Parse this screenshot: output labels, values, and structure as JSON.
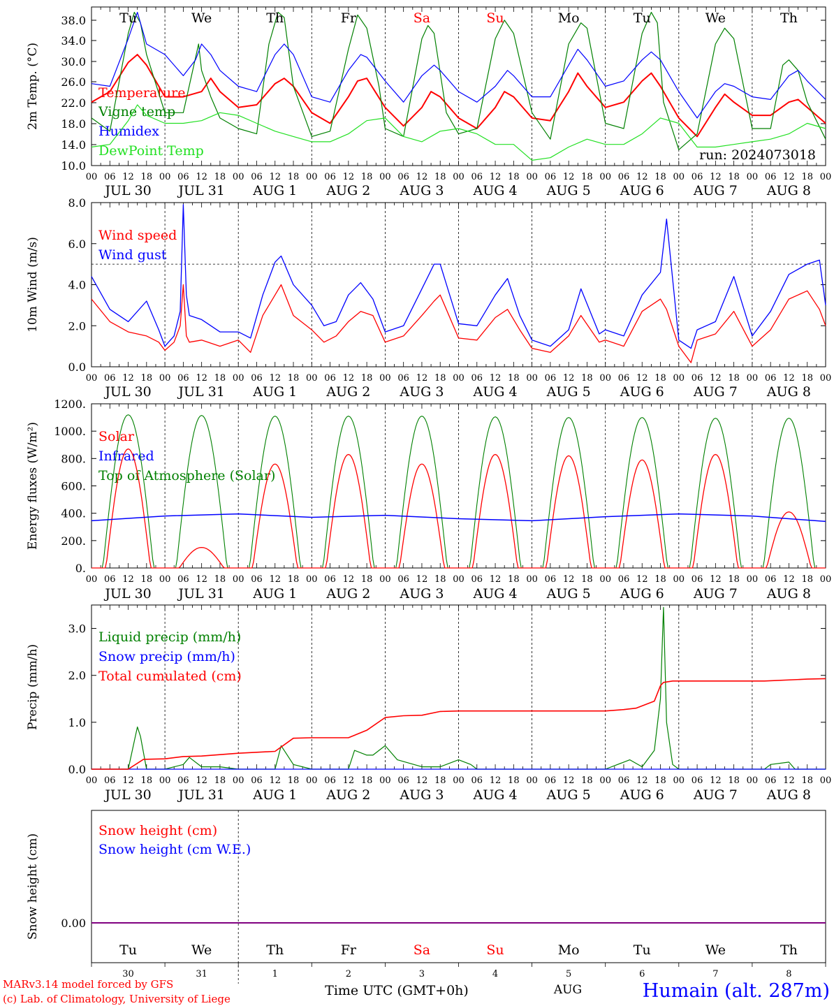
{
  "meta": {
    "run": "run: 2024073018",
    "model_credit": "MARv3.14 model forced by GFS",
    "lab_credit": "(c) Lab. of Climatology, University of Liege",
    "time_axis_title": "Time UTC (GMT+0h)",
    "month": "AUG",
    "station": "Humain (alt. 287m)"
  },
  "colors": {
    "red": "#ff0000",
    "green": "#008000",
    "blue": "#0000ff",
    "lightgreen": "#22e022",
    "purple": "#800080",
    "ink": "#000000"
  },
  "days": {
    "weekday": [
      "Tu",
      "We",
      "Th",
      "Fr",
      "Sa",
      "Su",
      "Mo",
      "Tu",
      "We",
      "Th"
    ],
    "weekend": [
      false,
      false,
      false,
      false,
      true,
      true,
      false,
      false,
      false,
      false
    ],
    "date": [
      "JUL 30",
      "JUL 31",
      "AUG  1",
      "AUG  2",
      "AUG  3",
      "AUG  4",
      "AUG  5",
      "AUG  6",
      "AUG  7",
      "AUG  8"
    ],
    "daynum": [
      "30",
      "31",
      "1",
      "2",
      "3",
      "4",
      "5",
      "6",
      "7",
      "8"
    ]
  },
  "hour_labels": [
    "00",
    "06",
    "12",
    "18"
  ],
  "hour_end_label": "00",
  "chart_data": [
    {
      "type": "line",
      "ylabel": "2m Temp. (°C)",
      "ylim": [
        10,
        40
      ],
      "yticks": [
        "10.0",
        "14.0",
        "18.0",
        "22.0",
        "26.0",
        "30.0",
        "34.0",
        "38.0"
      ],
      "x_unit": "hours from JUL 30 00 UTC",
      "series": [
        {
          "name": "Temperature",
          "color": "red",
          "x": [
            0,
            6,
            12,
            15,
            18,
            24,
            30,
            36,
            39,
            42,
            48,
            54,
            60,
            63,
            66,
            72,
            78,
            84,
            87,
            90,
            96,
            102,
            108,
            111,
            114,
            120,
            126,
            132,
            135,
            138,
            144,
            150,
            156,
            159,
            162,
            168,
            174,
            180,
            183,
            186,
            192,
            198,
            204,
            207,
            210,
            216,
            222,
            228,
            231,
            234,
            240
          ],
          "values": [
            22,
            24,
            29.5,
            31,
            29,
            23,
            23,
            24,
            26.5,
            24,
            21,
            21.5,
            25.5,
            26.5,
            25,
            20,
            18,
            23,
            26,
            26.5,
            21,
            17.5,
            21,
            24,
            23,
            19,
            17,
            21,
            24,
            23,
            19,
            18.5,
            24,
            27.5,
            25,
            21,
            22,
            26,
            27.5,
            25,
            19,
            15.5,
            21,
            23.5,
            22,
            19.5,
            19.5,
            22,
            22.5,
            21,
            18
          ]
        },
        {
          "name": "Vigne temp",
          "color": "green",
          "x": [
            0,
            6,
            12,
            14,
            16,
            18,
            24,
            30,
            35,
            36,
            39,
            42,
            48,
            54,
            58,
            61,
            63,
            66,
            72,
            78,
            84,
            87,
            90,
            94,
            96,
            102,
            108,
            110,
            112,
            116,
            120,
            126,
            132,
            135,
            138,
            144,
            150,
            156,
            160,
            162,
            168,
            174,
            180,
            183,
            185,
            187,
            192,
            198,
            204,
            207,
            210,
            216,
            222,
            226,
            228,
            231,
            234,
            240
          ],
          "values": [
            19,
            16.5,
            35,
            39,
            37,
            31,
            20,
            20,
            33,
            28,
            23,
            19,
            17,
            16,
            33,
            39,
            38,
            25,
            15.5,
            16.5,
            32,
            38.5,
            36,
            25,
            17,
            15.5,
            34,
            36.5,
            35,
            20,
            16,
            17,
            34,
            37.5,
            35,
            20,
            15,
            33,
            37,
            36,
            18,
            17,
            35,
            39,
            37,
            22,
            13,
            16,
            33,
            36,
            34,
            17,
            17,
            29,
            30,
            28,
            22,
            15
          ]
        },
        {
          "name": "Humidex",
          "color": "blue",
          "x": [
            0,
            6,
            12,
            15,
            18,
            24,
            30,
            34,
            36,
            39,
            42,
            48,
            54,
            60,
            63,
            66,
            72,
            78,
            84,
            88,
            90,
            96,
            102,
            108,
            112,
            114,
            120,
            126,
            132,
            136,
            138,
            144,
            150,
            156,
            159,
            162,
            168,
            174,
            180,
            183,
            186,
            192,
            198,
            204,
            207,
            210,
            216,
            222,
            228,
            231,
            234,
            240
          ],
          "values": [
            25.5,
            25,
            34,
            39,
            33,
            31,
            27,
            30,
            33,
            31,
            28,
            25,
            24,
            31,
            33,
            31,
            23,
            22,
            28,
            31,
            30.5,
            26,
            22,
            27,
            29,
            28,
            24,
            22,
            25,
            28,
            27,
            23,
            23,
            29,
            32,
            30,
            25,
            26,
            30,
            31.5,
            30,
            24,
            19,
            24,
            25.5,
            25,
            23,
            22.5,
            27,
            28,
            26,
            22.5
          ]
        },
        {
          "name": "DewPoint Temp",
          "color": "lightgreen",
          "x": [
            0,
            6,
            12,
            15,
            18,
            24,
            30,
            36,
            42,
            48,
            54,
            60,
            66,
            72,
            78,
            84,
            90,
            96,
            102,
            108,
            114,
            120,
            126,
            132,
            138,
            144,
            150,
            156,
            162,
            168,
            174,
            180,
            186,
            192,
            198,
            204,
            210,
            216,
            222,
            228,
            234,
            240
          ],
          "values": [
            13.5,
            14,
            18.5,
            21.5,
            19.5,
            18,
            18,
            18.5,
            20,
            19.5,
            18,
            16.5,
            15.5,
            14.5,
            14.5,
            16,
            18.5,
            19,
            15.5,
            14.5,
            16.5,
            17,
            16,
            14,
            14,
            11,
            11.5,
            13.5,
            15,
            14,
            14,
            16,
            19,
            18,
            13.5,
            13.5,
            14,
            14.5,
            15,
            16,
            18,
            17
          ]
        }
      ]
    },
    {
      "type": "line",
      "ylabel": "10m Wind (m/s)",
      "ylim": [
        0,
        8
      ],
      "yticks": [
        "0.0",
        "2.0",
        "4.0",
        "6.0",
        "8.0"
      ],
      "reference_line": 5,
      "x_unit": "hours from JUL 30 00 UTC",
      "series": [
        {
          "name": "Wind speed",
          "color": "red",
          "x": [
            0,
            6,
            12,
            18,
            22,
            24,
            27,
            29,
            30,
            31,
            32,
            36,
            42,
            48,
            52,
            56,
            60,
            62,
            66,
            72,
            76,
            80,
            84,
            88,
            92,
            96,
            102,
            108,
            112,
            114,
            120,
            126,
            132,
            136,
            140,
            144,
            150,
            156,
            160,
            166,
            168,
            174,
            180,
            186,
            188,
            192,
            196,
            198,
            204,
            210,
            216,
            222,
            228,
            234,
            238,
            240
          ],
          "values": [
            3.3,
            2.2,
            1.7,
            1.5,
            1.2,
            0.8,
            1.2,
            2,
            4,
            1.5,
            1.2,
            1.3,
            1,
            1.3,
            0.7,
            2.5,
            3.5,
            4,
            2.5,
            1.8,
            1.2,
            1.5,
            2.2,
            2.7,
            2.5,
            1.2,
            1.5,
            2.5,
            3.2,
            3.5,
            1.4,
            1.3,
            2.4,
            2.8,
            1.8,
            0.9,
            0.7,
            1.5,
            2.5,
            1.2,
            1.3,
            1,
            2.7,
            3.3,
            2.8,
            1,
            0.2,
            1.3,
            1.6,
            2.7,
            1,
            1.8,
            3.3,
            3.7,
            2.8,
            2
          ]
        },
        {
          "name": "Wind gust",
          "color": "blue",
          "x": [
            0,
            6,
            12,
            18,
            22,
            24,
            27,
            29,
            30,
            31,
            32,
            36,
            42,
            48,
            52,
            56,
            60,
            62,
            66,
            72,
            76,
            80,
            84,
            88,
            92,
            96,
            102,
            108,
            112,
            114,
            120,
            126,
            132,
            136,
            140,
            144,
            150,
            156,
            160,
            166,
            168,
            174,
            180,
            186,
            188,
            192,
            196,
            198,
            204,
            210,
            216,
            222,
            228,
            234,
            238,
            240
          ],
          "values": [
            4.4,
            2.8,
            2.2,
            3.2,
            1.8,
            1,
            1.5,
            2.7,
            7.9,
            3.5,
            2.5,
            2.3,
            1.7,
            1.7,
            1.4,
            3.5,
            5.1,
            5.4,
            4,
            3,
            2,
            2.2,
            3.5,
            4.1,
            3.3,
            1.7,
            2,
            3.8,
            5,
            5,
            2.1,
            2,
            3.5,
            4.3,
            2.5,
            1.3,
            1,
            1.8,
            3.8,
            1.6,
            1.8,
            1.5,
            3.5,
            4.6,
            7.2,
            1.3,
            0.9,
            1.8,
            2.2,
            4.4,
            1.5,
            2.7,
            4.5,
            5,
            5.2,
            3
          ]
        }
      ]
    },
    {
      "type": "line",
      "ylabel": "Energy fluxes (W/m²)",
      "ylim": [
        0,
        1200
      ],
      "yticks": [
        "0.",
        "200.",
        "400.",
        "600.",
        "800.",
        "1000.",
        "1200."
      ],
      "x_unit": "hours from JUL 30 00 UTC",
      "series": [
        {
          "name": "Solar",
          "color": "red",
          "peaks_at_12h": [
            870,
            150,
            760,
            830,
            760,
            830,
            820,
            790,
            830,
            410
          ]
        },
        {
          "name": "Infrared",
          "color": "blue",
          "x": [
            0,
            24,
            48,
            72,
            96,
            120,
            144,
            168,
            192,
            216,
            240
          ],
          "values": [
            345,
            380,
            395,
            370,
            385,
            360,
            345,
            375,
            395,
            380,
            340
          ]
        },
        {
          "name": "Top of Atmosphere (Solar)",
          "color": "green",
          "peaks_at_12h": [
            1120,
            1115,
            1110,
            1110,
            1110,
            1105,
            1100,
            1100,
            1095,
            1095
          ]
        }
      ]
    },
    {
      "type": "line",
      "ylabel": "Precip (mm/h)",
      "ylim": [
        0,
        3.5
      ],
      "yticks": [
        "0.0",
        "1.0",
        "2.0",
        "3.0"
      ],
      "x_unit": "hours from JUL 30 00 UTC",
      "series": [
        {
          "name": "Liquid precip (mm/h)",
          "color": "green",
          "x": [
            0,
            12,
            14,
            15,
            16,
            18,
            24,
            30,
            32,
            36,
            42,
            48,
            60,
            62,
            66,
            72,
            84,
            86,
            90,
            92,
            96,
            100,
            108,
            114,
            120,
            124,
            126,
            168,
            176,
            180,
            184,
            186,
            187,
            188,
            190,
            192,
            220,
            222,
            228,
            230,
            240
          ],
          "values": [
            0,
            0,
            0.6,
            0.9,
            0.7,
            0,
            0,
            0.1,
            0.25,
            0.05,
            0.05,
            0,
            0,
            0.5,
            0.1,
            0,
            0,
            0.4,
            0.3,
            0.3,
            0.5,
            0.2,
            0.05,
            0.05,
            0.2,
            0.1,
            0,
            0,
            0.2,
            0.05,
            0.4,
            1.5,
            3.45,
            1,
            0.1,
            0,
            0,
            0.1,
            0.15,
            0,
            0
          ]
        },
        {
          "name": "Snow precip (mm/h)",
          "color": "blue",
          "x": [
            0,
            240
          ],
          "values": [
            0,
            0
          ]
        },
        {
          "name": "Total cumulated (cm)",
          "color": "red",
          "x": [
            0,
            12,
            17,
            24,
            30,
            36,
            42,
            48,
            60,
            66,
            72,
            84,
            90,
            96,
            102,
            108,
            114,
            120,
            168,
            174,
            178,
            184,
            186,
            187,
            190,
            192,
            220,
            234,
            240
          ],
          "values": [
            0,
            0,
            0.21,
            0.22,
            0.27,
            0.28,
            0.31,
            0.34,
            0.38,
            0.66,
            0.67,
            0.67,
            0.83,
            1.1,
            1.14,
            1.15,
            1.23,
            1.24,
            1.24,
            1.27,
            1.3,
            1.45,
            1.78,
            1.85,
            1.88,
            1.88,
            1.88,
            1.92,
            1.93
          ]
        }
      ]
    },
    {
      "type": "line",
      "ylabel": "Snow height (cm)",
      "yticks": [
        "0.00"
      ],
      "x_unit": "hours from JUL 30 00 UTC",
      "series": [
        {
          "name": "Snow height (cm)",
          "color": "red",
          "x": [
            0,
            240
          ],
          "values": [
            0,
            0
          ]
        },
        {
          "name": "Snow height (cm W.E.)",
          "color": "blue",
          "x": [
            0,
            240
          ],
          "values": [
            0,
            0
          ]
        }
      ]
    }
  ]
}
